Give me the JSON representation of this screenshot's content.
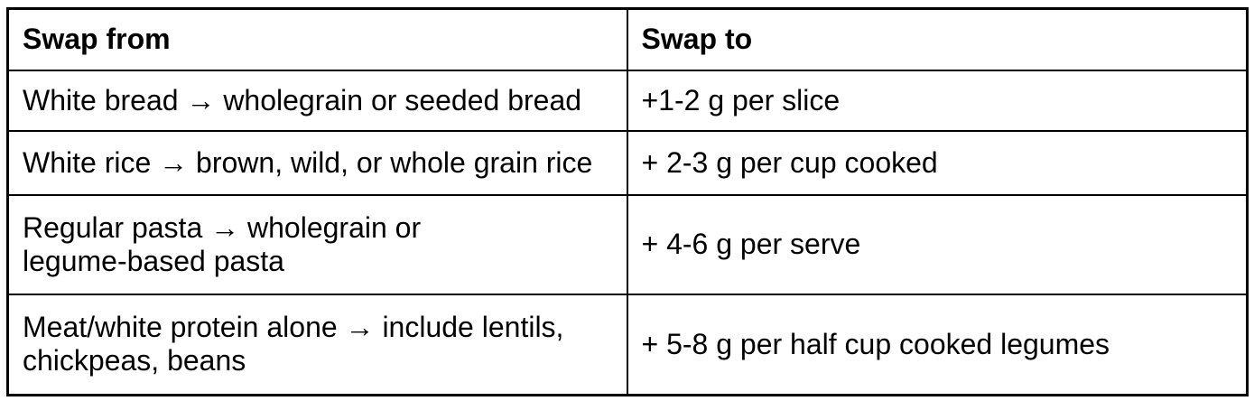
{
  "table": {
    "headers": [
      "Swap from",
      "Swap to"
    ],
    "rows": [
      {
        "from": "White bread → wholegrain or seeded bread",
        "to": "+1-2 g per slice"
      },
      {
        "from": "White rice → brown, wild, or whole grain rice",
        "to": "+ 2-3 g per cup cooked"
      },
      {
        "from": "Regular pasta → wholegrain or\nlegume-based pasta",
        "to": "+ 4-6 g per serve"
      },
      {
        "from": "Meat/white protein alone → include lentils,\nchickpeas, beans",
        "to": "+ 5-8 g per half cup cooked legumes"
      }
    ]
  },
  "colors": {
    "border": "#000000",
    "text": "#000000",
    "background": "#ffffff"
  }
}
